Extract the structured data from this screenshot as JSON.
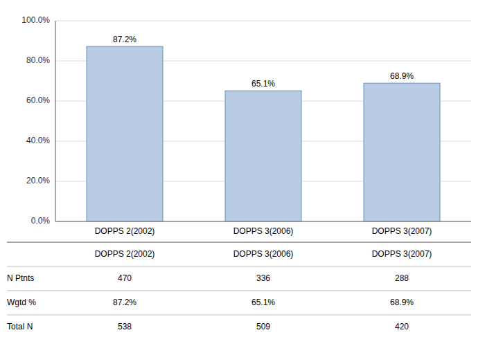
{
  "chart_data": {
    "type": "bar",
    "categories": [
      "DOPPS 2(2002)",
      "DOPPS 3(2006)",
      "DOPPS 3(2007)"
    ],
    "values": [
      87.2,
      65.1,
      68.9
    ],
    "value_labels": [
      "87.2%",
      "65.1%",
      "68.9%"
    ],
    "data_labels": true,
    "color": "#b8cce4",
    "ylim": [
      0,
      100
    ],
    "yticks": [
      {
        "value": 0,
        "label": "0.0%"
      },
      {
        "value": 20,
        "label": "20.0%"
      },
      {
        "value": 40,
        "label": "40.0%"
      },
      {
        "value": 60,
        "label": "60.0%"
      },
      {
        "value": 80,
        "label": "80.0%"
      },
      {
        "value": 100,
        "label": "100.0%"
      }
    ],
    "grid": true,
    "table": {
      "row_labels": [
        "N Ptnts",
        "Wgtd %",
        "Total N"
      ],
      "cells": [
        [
          "470",
          "336",
          "288"
        ],
        [
          "87.2%",
          "65.1%",
          "68.9%"
        ],
        [
          "538",
          "509",
          "420"
        ]
      ]
    }
  }
}
